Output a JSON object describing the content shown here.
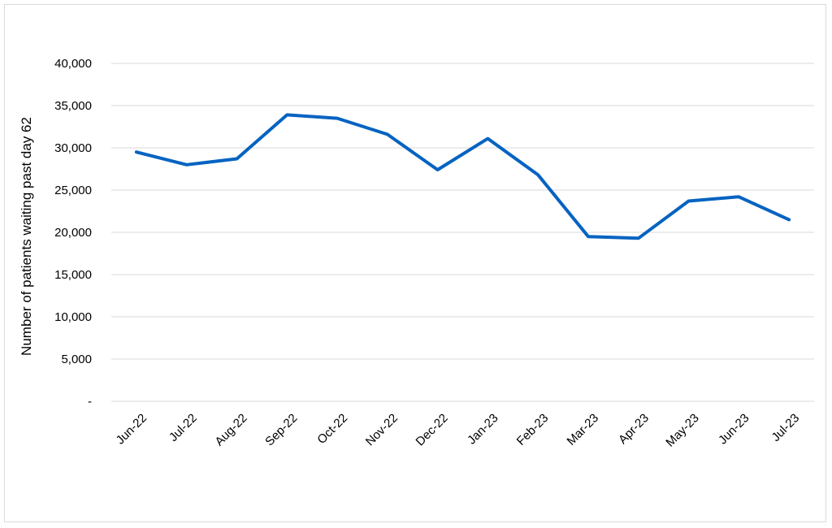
{
  "chart_data": {
    "type": "line",
    "title": "",
    "xlabel": "",
    "ylabel": "Number of patients waiting past day 62",
    "categories": [
      "Jun-22",
      "Jul-22",
      "Aug-22",
      "Sep-22",
      "Oct-22",
      "Nov-22",
      "Dec-22",
      "Jan-23",
      "Feb-23",
      "Mar-23",
      "Apr-23",
      "May-23",
      "Jun-23",
      "Jul-23"
    ],
    "series": [
      {
        "values": [
          29500,
          28000,
          28700,
          33900,
          33500,
          31600,
          27400,
          31100,
          26800,
          19500,
          19300,
          23700,
          24200,
          21500
        ]
      }
    ],
    "ylim": [
      0,
      40000
    ],
    "yticks": [
      0,
      5000,
      10000,
      15000,
      20000,
      25000,
      30000,
      35000,
      40000
    ],
    "yticklabels": [
      "-",
      "5,000",
      "10,000",
      "15,000",
      "20,000",
      "25,000",
      "30,000",
      "35,000",
      "40,000"
    ],
    "grid": true,
    "legend": "none",
    "colors": {
      "line": "#0563C1",
      "grid": "#d9d9d9",
      "border": "#d9d9d9"
    }
  }
}
